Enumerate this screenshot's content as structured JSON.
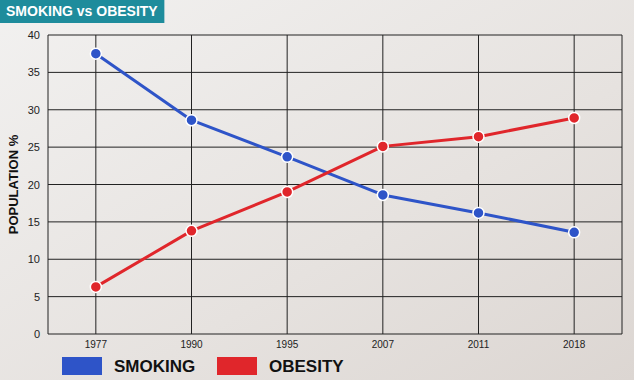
{
  "chart_data": {
    "type": "line",
    "title": "SMOKING vs OBESITY",
    "y_label": "POPULATION %",
    "categories": [
      "1977",
      "1990",
      "1995",
      "2007",
      "2011",
      "2018"
    ],
    "series": [
      {
        "name": "SMOKING",
        "color": "#2e54c8",
        "marker": "circle",
        "values": [
          37.5,
          28.6,
          23.7,
          18.6,
          16.2,
          13.6
        ]
      },
      {
        "name": "OBESITY",
        "color": "#e0262b",
        "marker": "circle",
        "values": [
          6.3,
          13.8,
          19,
          25.1,
          26.4,
          28.9
        ]
      }
    ],
    "ylim": [
      0,
      40
    ],
    "yticks": [
      0,
      5,
      10,
      15,
      20,
      25,
      30,
      35,
      40
    ],
    "grid": true,
    "legend": "bottom"
  }
}
